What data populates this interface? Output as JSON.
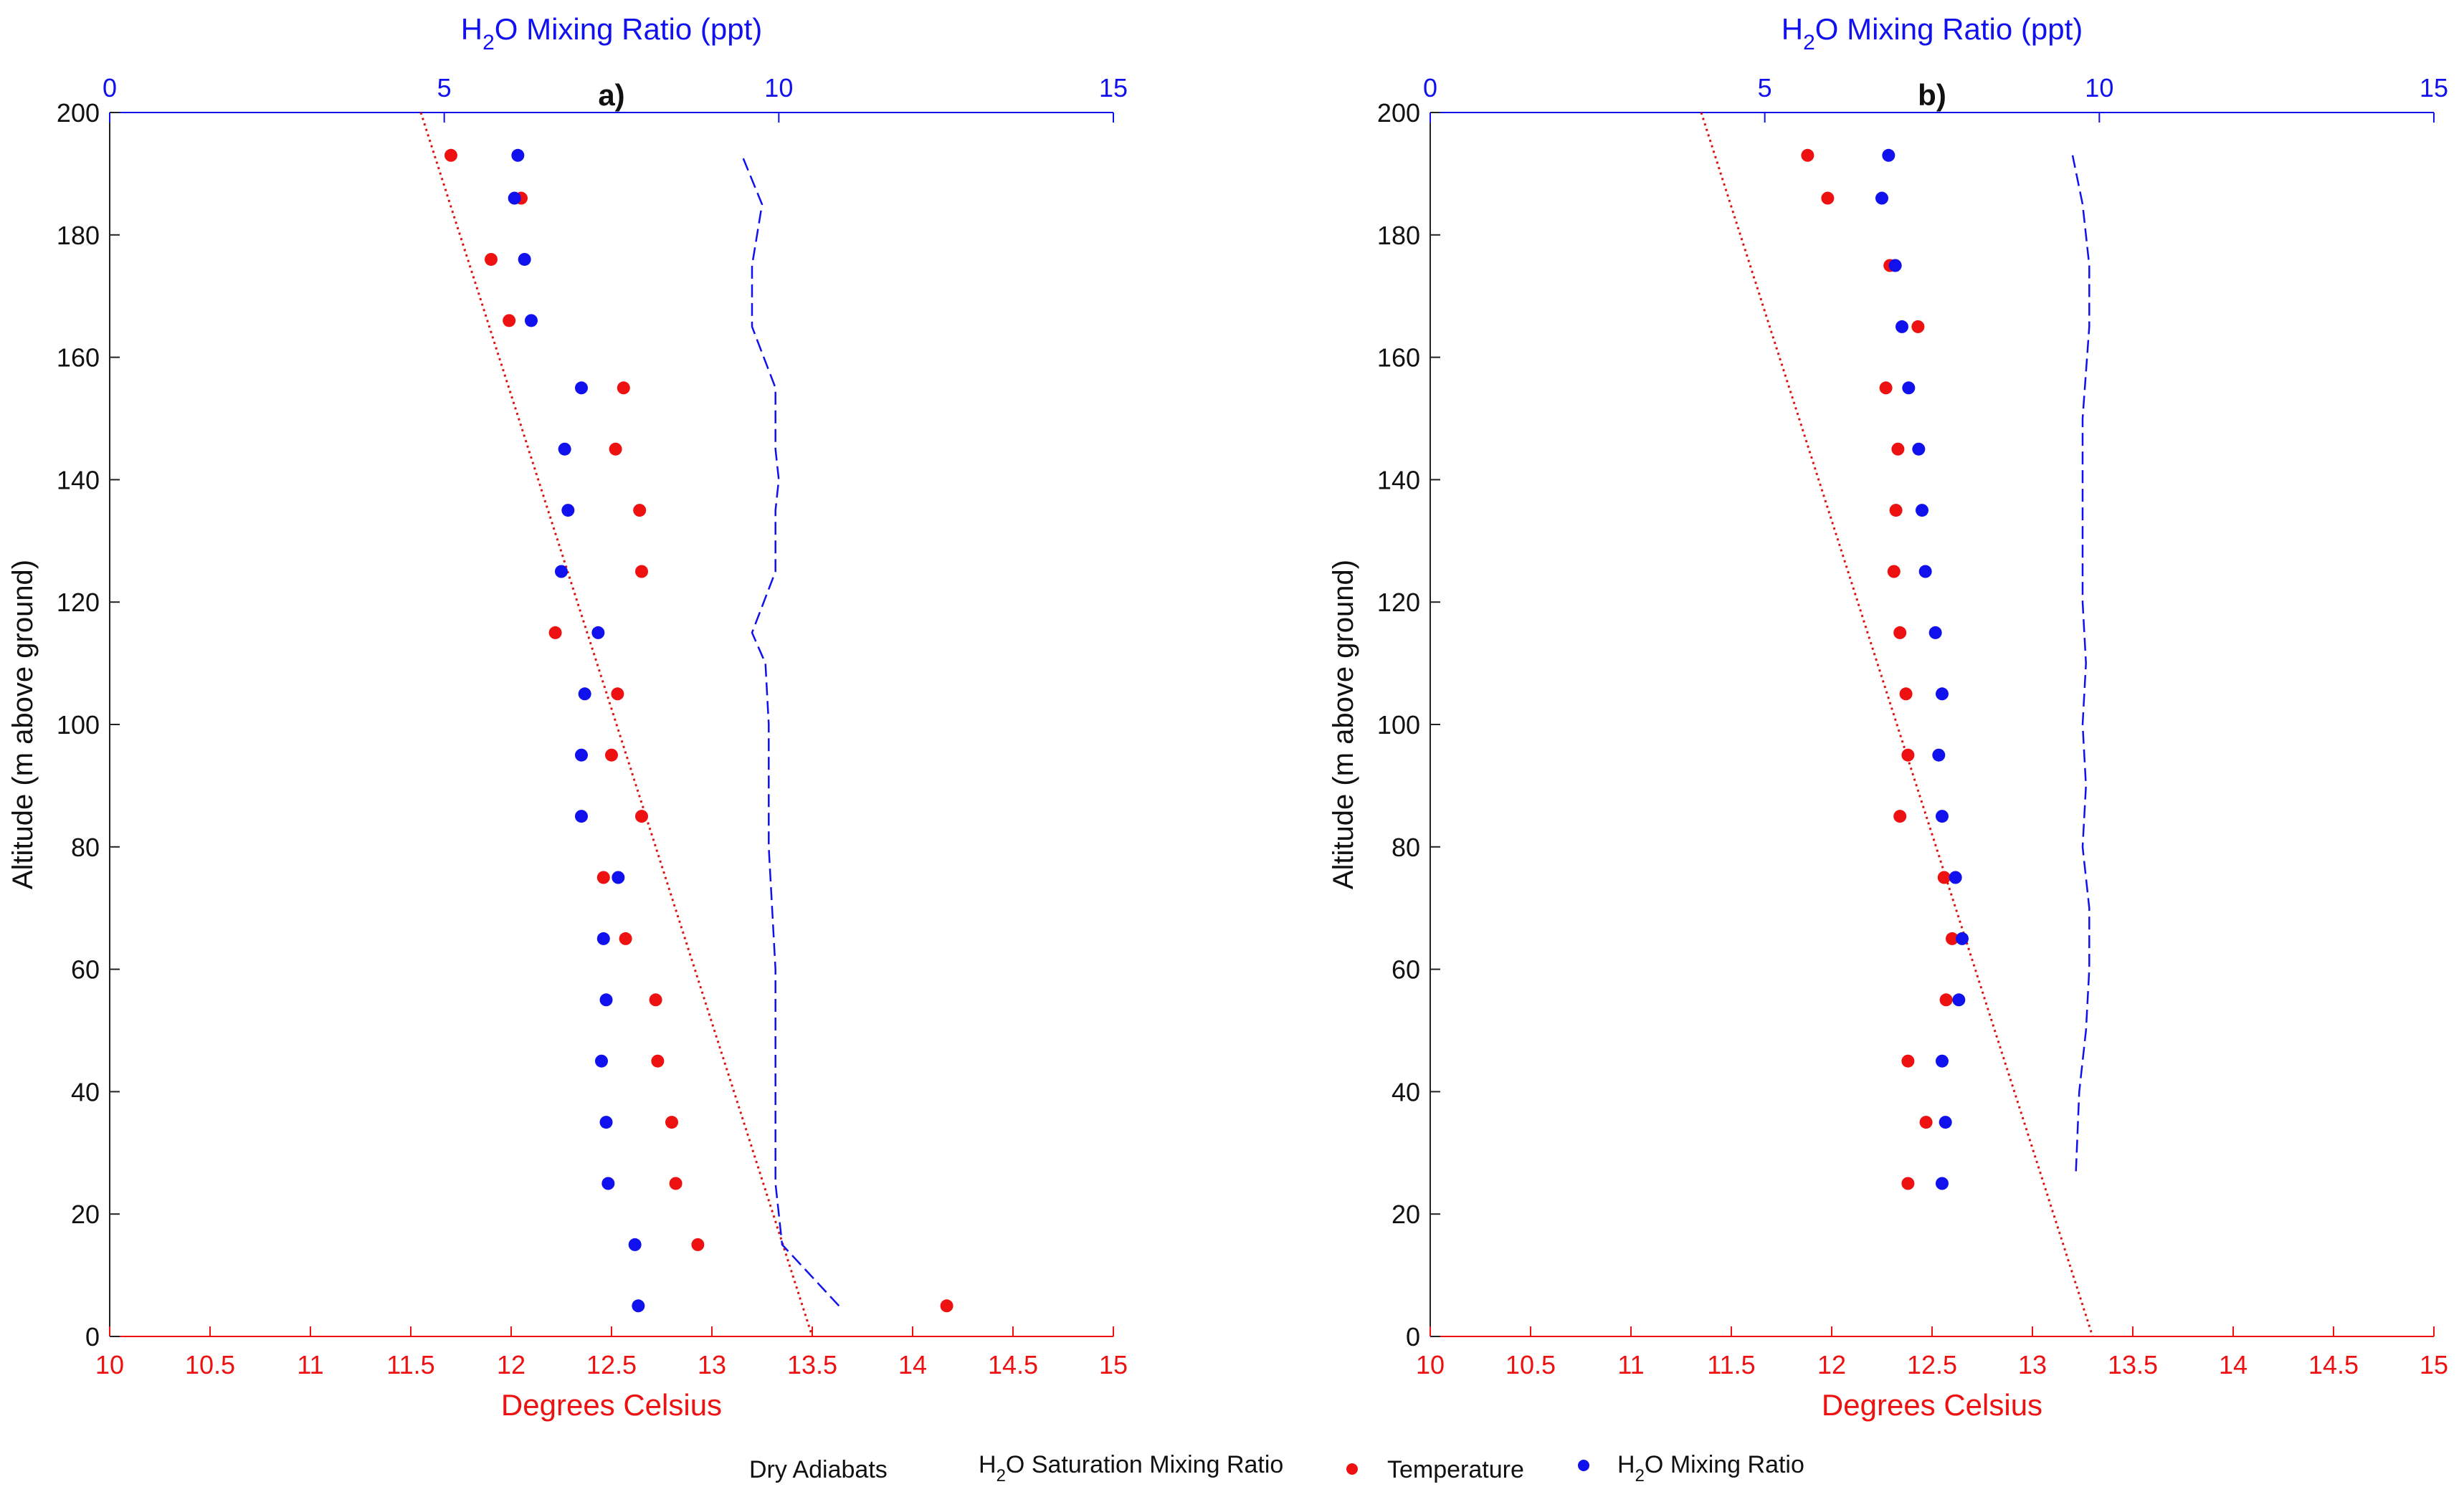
{
  "colors": {
    "temperature": "#ee1111",
    "mixing": "#1111ee",
    "adiabat": "#dd1111",
    "axis_text": "#111111"
  },
  "legend": {
    "dry_adiabats": "Dry Adiabats",
    "saturation_main": "H",
    "saturation_sub": "2",
    "saturation_rest": "O Saturation Mixing Ratio",
    "temperature": "Temperature",
    "mixing_main": "H",
    "mixing_sub": "2",
    "mixing_rest": "O Mixing Ratio"
  },
  "chart_data": [
    {
      "type": "scatter",
      "panel_label": "a)",
      "top_axis_label_main": "H",
      "top_axis_label_sub": "2",
      "top_axis_label_rest": "O Mixing Ratio (ppt)",
      "xlabel": "Degrees Celsius",
      "ylabel": "Altitude (m above ground)",
      "x_bottom_range": [
        10,
        15
      ],
      "x_bottom_ticks": [
        "10",
        "10.5",
        "11",
        "11.5",
        "12",
        "12.5",
        "13",
        "13.5",
        "14",
        "14.5",
        "15"
      ],
      "x_top_range": [
        0,
        15
      ],
      "x_top_ticks": [
        "0",
        "5",
        "10",
        "15"
      ],
      "y_range": [
        0,
        200
      ],
      "y_ticks": [
        "0",
        "20",
        "40",
        "60",
        "80",
        "100",
        "120",
        "140",
        "160",
        "180",
        "200"
      ],
      "temperature": {
        "altitude": [
          5,
          15,
          25,
          35,
          45,
          55,
          65,
          75,
          85,
          95,
          105,
          115,
          125,
          135,
          145,
          155,
          166,
          176,
          186,
          193
        ],
        "celsius": [
          14.17,
          12.93,
          12.82,
          12.8,
          12.73,
          12.72,
          12.57,
          12.46,
          12.65,
          12.5,
          12.53,
          12.22,
          12.65,
          12.64,
          12.52,
          12.56,
          11.99,
          11.9,
          12.05,
          11.7
        ]
      },
      "mixing_ratio": {
        "altitude": [
          5,
          15,
          25,
          35,
          45,
          55,
          65,
          75,
          85,
          95,
          105,
          115,
          125,
          135,
          145,
          155,
          166,
          176,
          186,
          193
        ],
        "ppt": [
          7.9,
          7.85,
          7.45,
          7.42,
          7.35,
          7.42,
          7.38,
          7.6,
          7.05,
          7.05,
          7.1,
          7.3,
          6.75,
          6.85,
          6.8,
          7.05,
          6.3,
          6.2,
          6.05,
          6.1
        ]
      },
      "saturation": {
        "altitude": [
          5,
          15,
          25,
          40,
          60,
          80,
          100,
          110,
          115,
          125,
          135,
          140,
          145,
          155,
          165,
          175,
          185,
          193
        ],
        "ppt": [
          10.9,
          10.05,
          9.95,
          9.95,
          9.95,
          9.85,
          9.85,
          9.8,
          9.6,
          9.95,
          9.95,
          10.0,
          9.95,
          9.95,
          9.6,
          9.6,
          9.75,
          9.45
        ]
      },
      "adiabat": {
        "x": [
          11.55,
          13.5
        ],
        "altitude": [
          200,
          0
        ]
      }
    },
    {
      "type": "scatter",
      "panel_label": "b)",
      "top_axis_label_main": "H",
      "top_axis_label_sub": "2",
      "top_axis_label_rest": "O Mixing Ratio (ppt)",
      "xlabel": "Degrees Celsius",
      "ylabel": "Altitude (m above ground)",
      "x_bottom_range": [
        10,
        15
      ],
      "x_bottom_ticks": [
        "10",
        "10.5",
        "11",
        "11.5",
        "12",
        "12.5",
        "13",
        "13.5",
        "14",
        "14.5",
        "15"
      ],
      "x_top_range": [
        0,
        15
      ],
      "x_top_ticks": [
        "0",
        "5",
        "10",
        "15"
      ],
      "y_range": [
        0,
        200
      ],
      "y_ticks": [
        "0",
        "20",
        "40",
        "60",
        "80",
        "100",
        "120",
        "140",
        "160",
        "180",
        "200"
      ],
      "temperature": {
        "altitude": [
          25,
          35,
          45,
          55,
          65,
          75,
          85,
          95,
          105,
          115,
          125,
          135,
          145,
          155,
          165,
          175,
          186,
          193
        ],
        "celsius": [
          12.38,
          12.47,
          12.38,
          12.57,
          12.6,
          12.56,
          12.34,
          12.38,
          12.37,
          12.34,
          12.31,
          12.32,
          12.33,
          12.27,
          12.43,
          12.29,
          11.98,
          11.88
        ]
      },
      "mixing_ratio": {
        "altitude": [
          25,
          35,
          45,
          55,
          65,
          75,
          85,
          95,
          105,
          115,
          125,
          135,
          145,
          155,
          165,
          175,
          186,
          193
        ],
        "ppt": [
          7.65,
          7.7,
          7.65,
          7.9,
          7.95,
          7.85,
          7.65,
          7.6,
          7.65,
          7.55,
          7.4,
          7.35,
          7.3,
          7.15,
          7.05,
          6.95,
          6.75,
          6.85
        ]
      },
      "saturation": {
        "altitude": [
          27,
          40,
          50,
          60,
          70,
          80,
          90,
          100,
          110,
          120,
          130,
          140,
          150,
          165,
          175,
          185,
          193
        ],
        "ppt": [
          9.65,
          9.7,
          9.8,
          9.85,
          9.85,
          9.75,
          9.8,
          9.75,
          9.8,
          9.75,
          9.75,
          9.75,
          9.75,
          9.85,
          9.85,
          9.75,
          9.6
        ]
      },
      "adiabat": {
        "x": [
          11.35,
          13.3
        ],
        "altitude": [
          200,
          0
        ]
      }
    }
  ]
}
